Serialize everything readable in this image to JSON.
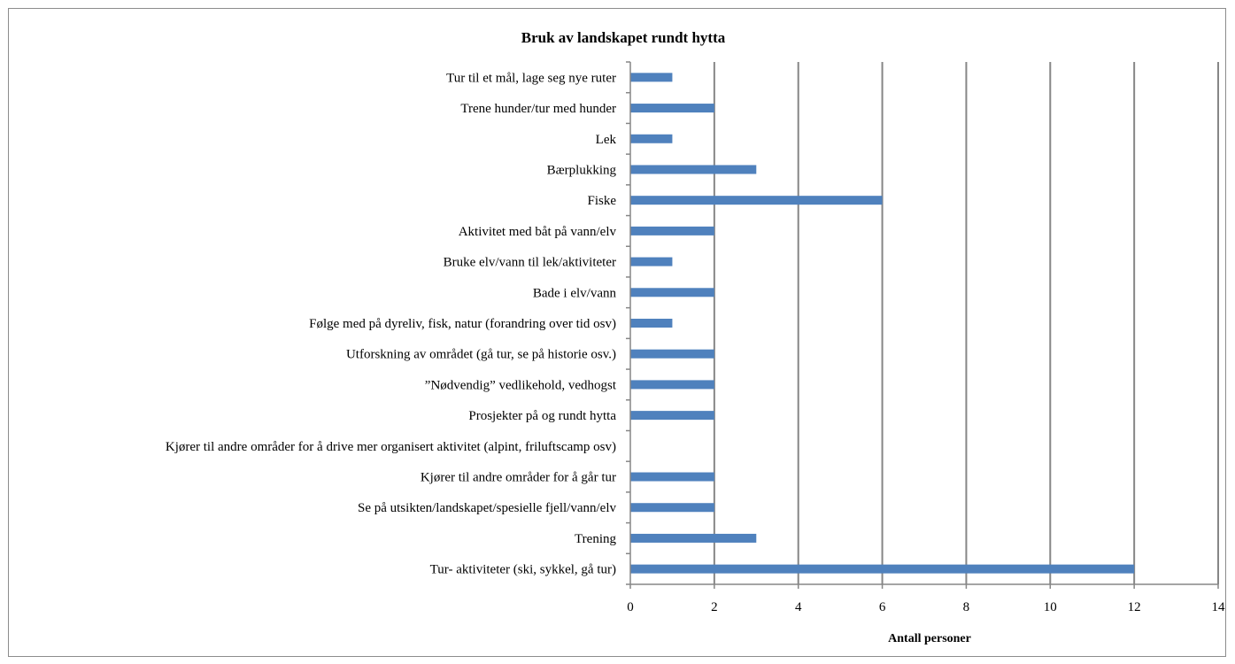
{
  "chart_data": {
    "type": "bar",
    "orientation": "horizontal",
    "title": "Bruk av landskapet rundt hytta",
    "xlabel": "Antall personer",
    "ylabel": "",
    "xlim": [
      0,
      14
    ],
    "xticks": [
      0,
      2,
      4,
      6,
      8,
      10,
      12,
      14
    ],
    "xtick_labels": [
      "0",
      "2",
      "4",
      "6",
      "8",
      "10",
      "12",
      "14"
    ],
    "grid": "vertical major gridlines",
    "legend": "none",
    "bar_color": "#4f81bd",
    "grid_color": "#868686",
    "categories": [
      "Tur til et mål, lage seg nye ruter",
      "Trene hunder/tur med hunder",
      "Lek",
      "Bærplukking",
      "Fiske",
      "Aktivitet med båt på vann/elv",
      "Bruke elv/vann til lek/aktiviteter",
      "Bade i elv/vann",
      "Følge med på dyreliv, fisk, natur (forandring over tid osv)",
      "Utforskning av området (gå tur, se på historie osv.)",
      "”Nødvendig” vedlikehold, vedhogst",
      "Prosjekter på og rundt hytta",
      "Kjører til andre områder for å drive mer organisert aktivitet (alpint, friluftscamp osv)",
      "Kjører til andre områder for å går tur",
      "Se på utsikten/landskapet/spesielle fjell/vann/elv",
      "Trening",
      "Tur- aktiviteter (ski, sykkel, gå tur)"
    ],
    "values": [
      1,
      2,
      1,
      3,
      6,
      2,
      1,
      2,
      1,
      2,
      2,
      2,
      0,
      2,
      2,
      3,
      12
    ]
  }
}
